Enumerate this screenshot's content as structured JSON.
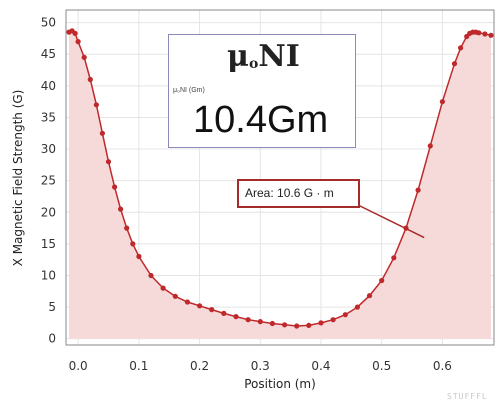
{
  "chart_data": {
    "type": "scatter",
    "xlabel": "Position (m)",
    "ylabel": "X Magnetic Field Strength (G)",
    "xlim": [
      -0.02,
      0.685
    ],
    "ylim": [
      -1,
      52
    ],
    "xticks": [
      0.0,
      0.1,
      0.2,
      0.3,
      0.4,
      0.5,
      0.6
    ],
    "xtick_labels": [
      "0.0",
      "0.1",
      "0.2",
      "0.3",
      "0.4",
      "0.5",
      "0.6"
    ],
    "yticks": [
      0,
      5,
      10,
      15,
      20,
      25,
      30,
      35,
      40,
      45,
      50
    ],
    "ytick_labels": [
      "0",
      "5",
      "10",
      "15",
      "20",
      "25",
      "30",
      "35",
      "40",
      "45",
      "50"
    ],
    "grid": true,
    "series": [
      {
        "marker_color": "#c0292b",
        "fill_color": "#f6dada",
        "x": [
          -0.015,
          -0.01,
          -0.005,
          0.0,
          0.01,
          0.02,
          0.03,
          0.04,
          0.05,
          0.06,
          0.07,
          0.08,
          0.09,
          0.1,
          0.12,
          0.14,
          0.16,
          0.18,
          0.2,
          0.22,
          0.24,
          0.26,
          0.28,
          0.3,
          0.32,
          0.34,
          0.36,
          0.38,
          0.4,
          0.42,
          0.44,
          0.46,
          0.48,
          0.5,
          0.52,
          0.54,
          0.56,
          0.58,
          0.6,
          0.62,
          0.63,
          0.64,
          0.645,
          0.65,
          0.655,
          0.66,
          0.67,
          0.68
        ],
        "y": [
          48.5,
          48.7,
          48.3,
          47.0,
          44.5,
          41.0,
          37.0,
          32.5,
          28.0,
          24.0,
          20.5,
          17.5,
          15.0,
          13.0,
          10.0,
          8.0,
          6.7,
          5.8,
          5.2,
          4.6,
          4.0,
          3.5,
          3.0,
          2.7,
          2.4,
          2.2,
          2.0,
          2.1,
          2.5,
          3.0,
          3.8,
          5.0,
          6.8,
          9.2,
          12.8,
          17.5,
          23.5,
          30.5,
          37.5,
          43.5,
          46.0,
          47.8,
          48.3,
          48.5,
          48.5,
          48.4,
          48.2,
          48.0
        ]
      }
    ],
    "annotations": [
      {
        "text": "Area: 10.6 G · m",
        "points_to": {
          "x": 0.57,
          "y": 16.0
        }
      }
    ]
  },
  "readout": {
    "formula_main": "μ",
    "formula_sub": "o",
    "formula_rest": "NI",
    "small_label": "μ₀NI (Gm)",
    "value": "10.4Gm"
  },
  "callout": {
    "text": "Area: 10.6 G · m"
  },
  "watermark": "STUFFFL"
}
